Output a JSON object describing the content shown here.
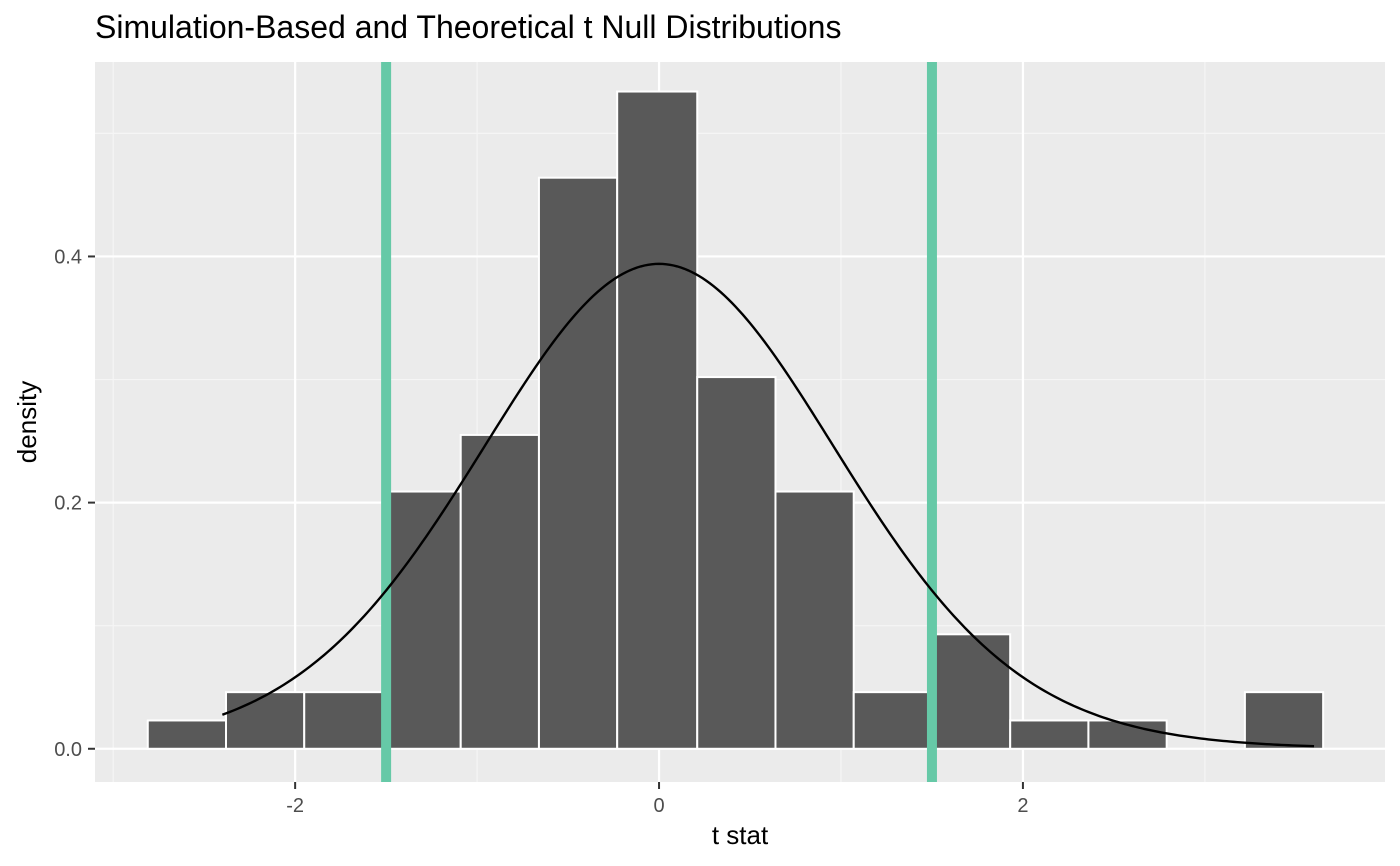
{
  "chart_data": {
    "type": "bar",
    "title": "Simulation-Based and Theoretical t Null Distributions",
    "xlabel": "t stat",
    "ylabel": "density",
    "xlim": [
      -3.1,
      3.99
    ],
    "ylim": [
      -0.027,
      0.558
    ],
    "x_ticks": [
      -2,
      0,
      2
    ],
    "x_tick_labels": [
      "-2",
      "0",
      "2"
    ],
    "y_ticks": [
      0.0,
      0.2,
      0.4
    ],
    "y_tick_labels": [
      "0.0",
      "0.2",
      "0.4"
    ],
    "grid": true,
    "histogram": {
      "bin_width": 0.43,
      "bins": [
        {
          "x0": -2.81,
          "x1": -2.38,
          "density": 0.023
        },
        {
          "x0": -2.38,
          "x1": -1.95,
          "density": 0.046
        },
        {
          "x0": -1.95,
          "x1": -1.52,
          "density": 0.046
        },
        {
          "x0": -1.52,
          "x1": -1.09,
          "density": 0.209
        },
        {
          "x0": -1.09,
          "x1": -0.66,
          "density": 0.255
        },
        {
          "x0": -0.66,
          "x1": -0.23,
          "density": 0.464
        },
        {
          "x0": -0.23,
          "x1": 0.21,
          "density": 0.534
        },
        {
          "x0": 0.21,
          "x1": 0.64,
          "density": 0.302
        },
        {
          "x0": 0.64,
          "x1": 1.07,
          "density": 0.209
        },
        {
          "x0": 1.07,
          "x1": 1.5,
          "density": 0.046
        },
        {
          "x0": 1.5,
          "x1": 1.93,
          "density": 0.093
        },
        {
          "x0": 1.93,
          "x1": 2.36,
          "density": 0.023
        },
        {
          "x0": 2.36,
          "x1": 2.79,
          "density": 0.023
        },
        {
          "x0": 2.79,
          "x1": 3.22,
          "density": 0
        },
        {
          "x0": 3.22,
          "x1": 3.65,
          "density": 0.046
        }
      ],
      "fill": "#595959",
      "edge": "#ffffff"
    },
    "theoretical_curve": {
      "distribution": "t",
      "df": 20,
      "x_range": [
        -2.4,
        3.6
      ],
      "color": "#000000"
    },
    "vertical_lines": {
      "x": [
        -1.5,
        1.5
      ],
      "color": "#66c9a7"
    },
    "colors": {
      "panel_background": "#ebebeb",
      "grid_major": "#ffffff",
      "grid_minor": "#f5f5f5"
    }
  }
}
